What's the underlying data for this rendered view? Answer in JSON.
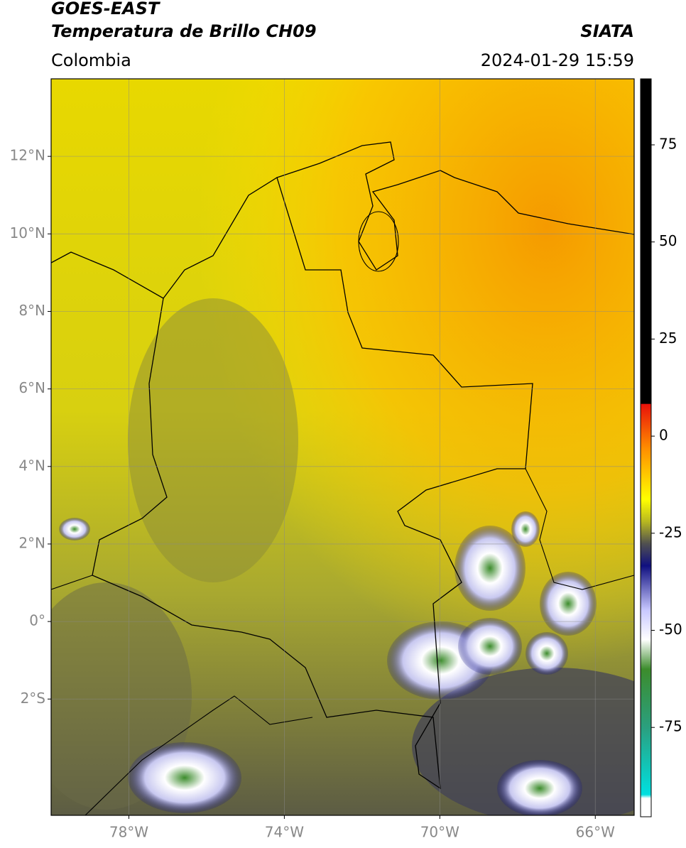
{
  "header": {
    "title": "GOES-EAST",
    "subtitle": "Temperatura de Brillo CH09",
    "agency": "SIATA",
    "region": "Colombia",
    "datetime": "2024-01-29 15:59"
  },
  "map": {
    "xlim": [
      -80,
      -65
    ],
    "ylim": [
      -5,
      14
    ],
    "xticks": [
      {
        "value": -78,
        "label": "78°W"
      },
      {
        "value": -74,
        "label": "74°W"
      },
      {
        "value": -70,
        "label": "70°W"
      },
      {
        "value": -66,
        "label": "66°W"
      }
    ],
    "yticks": [
      {
        "value": 12,
        "label": "12°N"
      },
      {
        "value": 10,
        "label": "10°N"
      },
      {
        "value": 8,
        "label": "8°N"
      },
      {
        "value": 6,
        "label": "6°N"
      },
      {
        "value": 4,
        "label": "4°N"
      },
      {
        "value": 2,
        "label": "2°N"
      },
      {
        "value": 0,
        "label": "0°"
      },
      {
        "value": -2,
        "label": "2°S"
      }
    ],
    "grid": true
  },
  "colorbar": {
    "lim": [
      -98,
      92
    ],
    "ticks": [
      75,
      50,
      25,
      0,
      -25,
      -50,
      -75
    ]
  }
}
